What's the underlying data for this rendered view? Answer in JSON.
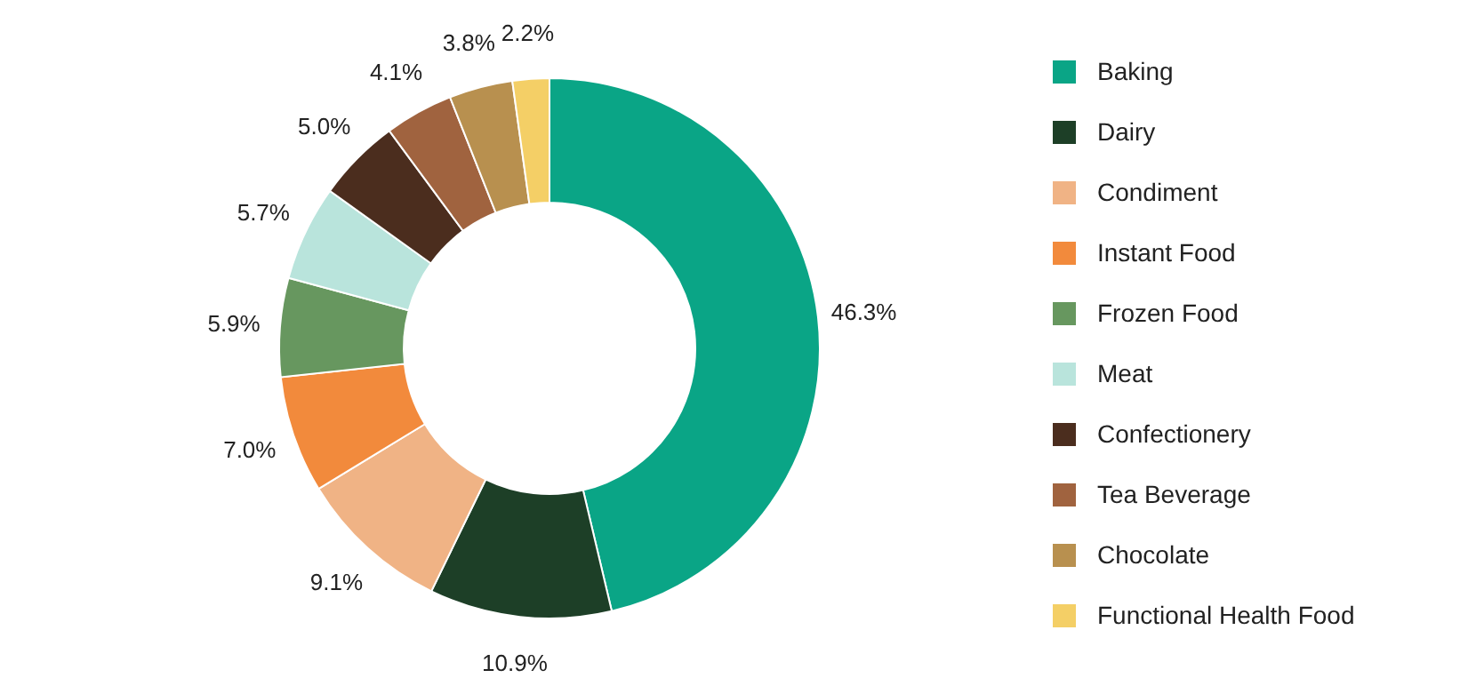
{
  "chart_data": {
    "type": "donut",
    "categories": [
      "Baking",
      "Dairy",
      "Condiment",
      "Instant Food",
      "Frozen Food",
      "Meat",
      "Confectionery",
      "Tea Beverage",
      "Chocolate",
      "Functional Health Food"
    ],
    "values": [
      46.3,
      10.9,
      9.1,
      7.0,
      5.9,
      5.7,
      5.0,
      4.1,
      3.8,
      2.2
    ],
    "value_labels": [
      "46.3%",
      "10.9%",
      "9.1%",
      "7.0%",
      "5.9%",
      "5.7%",
      "5.0%",
      "4.1%",
      "3.8%",
      "2.2%"
    ],
    "colors": [
      "#0aa586",
      "#1d3f27",
      "#f0b385",
      "#f28a3c",
      "#67975f",
      "#b9e4dc",
      "#4b2d1e",
      "#a0633f",
      "#b8904f",
      "#f4cf66"
    ],
    "legend": "right"
  }
}
